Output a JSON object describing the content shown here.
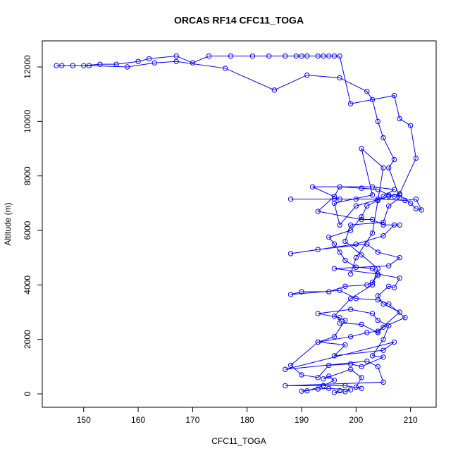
{
  "chart_data": {
    "type": "line",
    "title": "ORCAS RF14 CFC11_TOGA",
    "x_label": "CFC11_TOGA",
    "y_label": "Altitude (m)",
    "color": "#0000ff",
    "markers": true,
    "xlim": [
      142.4,
      214.7
    ],
    "ylim": [
      -491,
      12957
    ],
    "xticks": [
      150,
      160,
      170,
      180,
      190,
      200,
      210
    ],
    "yticks": [
      0,
      2000,
      4000,
      6000,
      8000,
      10000,
      12000
    ],
    "x": [
      197,
      196,
      198,
      199,
      195,
      193,
      190,
      191,
      194,
      196,
      195,
      194,
      199,
      201,
      200,
      201,
      198,
      194,
      187,
      205,
      204,
      202,
      187,
      207,
      205,
      196,
      198,
      193,
      199,
      202,
      204,
      208,
      205,
      204,
      206,
      207,
      208,
      204,
      196,
      206,
      208,
      204,
      202,
      193,
      188,
      200,
      205,
      207,
      208,
      205,
      203,
      201,
      193,
      196,
      197,
      201,
      204,
      206,
      207,
      208,
      210,
      211,
      212,
      211,
      209,
      204,
      200,
      196,
      188,
      197,
      192,
      203,
      207,
      205,
      204,
      202,
      201,
      199,
      195,
      196,
      197,
      198,
      200,
      203,
      204,
      203,
      202,
      198,
      195,
      190,
      188,
      197,
      200,
      204,
      206,
      209,
      205,
      204,
      201,
      197,
      197,
      193,
      199,
      203,
      204,
      206,
      205,
      203,
      205,
      201,
      199,
      195,
      193,
      190,
      188,
      193,
      196,
      198,
      196,
      199,
      203,
      204,
      201,
      198,
      199,
      205,
      206,
      208,
      206,
      207,
      205,
      204,
      203,
      202,
      197,
      191,
      185,
      176,
      167,
      163,
      158,
      151,
      145,
      146,
      148,
      150,
      153,
      156,
      160,
      162,
      167,
      170,
      173,
      177,
      181,
      184,
      187,
      189,
      190,
      191,
      193,
      194,
      195,
      196,
      197,
      199,
      207,
      208,
      210,
      211,
      208,
      206,
      200,
      197,
      196,
      203,
      201,
      205,
      203,
      200,
      199
    ],
    "values": [
      120,
      50,
      80,
      150,
      200,
      180,
      100,
      110,
      300,
      500,
      650,
      550,
      900,
      600,
      250,
      200,
      300,
      300,
      300,
      430,
      1000,
      1200,
      900,
      1900,
      1600,
      1400,
      1800,
      1900,
      2100,
      2250,
      2300,
      3000,
      3300,
      3600,
      3950,
      3900,
      4250,
      4400,
      4600,
      4700,
      5000,
      5200,
      5500,
      5300,
      5150,
      5500,
      5800,
      6200,
      6200,
      6200,
      6400,
      6400,
      6700,
      7250,
      7600,
      7550,
      7500,
      7300,
      7250,
      7300,
      7000,
      6800,
      6750,
      7150,
      7100,
      7150,
      7150,
      7150,
      7150,
      7150,
      7600,
      7600,
      7500,
      7250,
      7100,
      6900,
      6500,
      6000,
      5750,
      5500,
      5200,
      4900,
      4650,
      4600,
      4350,
      4100,
      4000,
      3950,
      3750,
      3750,
      3650,
      3800,
      3500,
      3450,
      3300,
      2800,
      2450,
      2250,
      2550,
      2600,
      2800,
      2950,
      3100,
      2950,
      2700,
      2500,
      2000,
      1400,
      1350,
      1000,
      1100,
      1050,
      600,
      700,
      1050,
      1900,
      2100,
      2700,
      2850,
      3500,
      4000,
      4600,
      5100,
      5600,
      6200,
      6300,
      6900,
      7200,
      8300,
      8600,
      9400,
      10000,
      10800,
      11100,
      11600,
      11700,
      11150,
      11950,
      12200,
      12150,
      12000,
      12050,
      12050,
      12050,
      12050,
      12050,
      12100,
      12100,
      12200,
      12300,
      12400,
      12150,
      12400,
      12400,
      12400,
      12400,
      12400,
      12400,
      12400,
      12400,
      12400,
      12400,
      12400,
      12400,
      12400,
      10650,
      10950,
      10100,
      9850,
      8650,
      7350,
      7250,
      6900,
      6200,
      7000,
      7300,
      9000,
      8300,
      5900,
      5000,
      4400
    ]
  }
}
